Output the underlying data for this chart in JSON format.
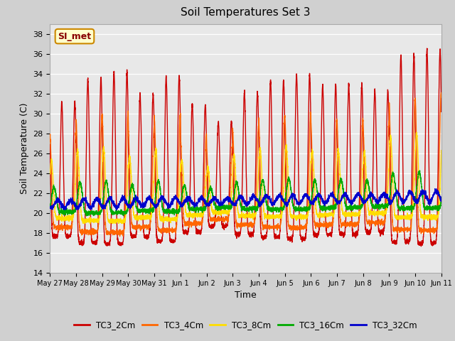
{
  "title": "Soil Temperatures Set 3",
  "xlabel": "Time",
  "ylabel": "Soil Temperature (C)",
  "ylim": [
    14,
    39
  ],
  "yticks": [
    14,
    16,
    18,
    20,
    22,
    24,
    26,
    28,
    30,
    32,
    34,
    36,
    38
  ],
  "fig_bg_color": "#d0d0d0",
  "plot_bg_color": "#e8e8e8",
  "grid_color": "#ffffff",
  "annotation_text": "SI_met",
  "annotation_bg": "#ffffcc",
  "annotation_border": "#cc8800",
  "annotation_text_color": "#880000",
  "series_colors": [
    "#cc0000",
    "#ff6600",
    "#ffdd00",
    "#00aa00",
    "#0000cc"
  ],
  "series_labels": [
    "TC3_2Cm",
    "TC3_4Cm",
    "TC3_8Cm",
    "TC3_16Cm",
    "TC3_32Cm"
  ],
  "x_tick_labels": [
    "May 27",
    "May 28",
    "May 29",
    "May 30",
    "May 31",
    "Jun 1",
    "Jun 2",
    "Jun 3",
    "Jun 4",
    "Jun 5",
    "Jun 6",
    "Jun 7",
    "Jun 8",
    "Jun 9",
    "Jun 10",
    "Jun 11"
  ],
  "line_width": 1.0
}
